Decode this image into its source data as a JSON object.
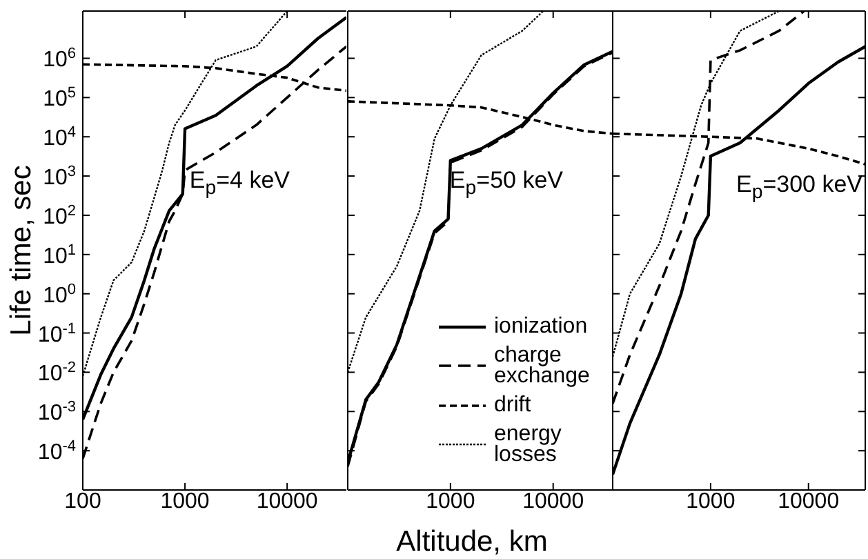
{
  "chart_data": [
    {
      "type": "line",
      "ylabel": "Life time, sec",
      "annotations": [
        "E$_{p}$=4 keV"
      ],
      "log": "xy",
      "xlim": [
        100,
        38000
      ],
      "ylim": [
        1e-05,
        16000000.0
      ],
      "xticks": [
        100,
        1000,
        10000
      ],
      "yticks": [
        {
          "value": 0.0001,
          "label": "10$^{-4}$"
        },
        {
          "value": 0.001,
          "label": "10$^{-3}$"
        },
        {
          "value": 0.01,
          "label": "10$^{-2}$"
        },
        {
          "value": 0.1,
          "label": "10$^{-1}$"
        },
        {
          "value": 1,
          "label": "10$^{0}$"
        },
        {
          "value": 10,
          "label": "10$^{1}$"
        },
        {
          "value": 100,
          "label": "10$^{2}$"
        },
        {
          "value": 1000,
          "label": "10$^{3}$"
        },
        {
          "value": 10000.0,
          "label": "10$^{4}$"
        },
        {
          "value": 100000.0,
          "label": "10$^{5}$"
        },
        {
          "value": 1000000.0,
          "label": "10$^{6}$"
        }
      ],
      "series": [
        {
          "color": "#000000",
          "line_style": "solid",
          "x": [
            100,
            150,
            200,
            300,
            400,
            500,
            700,
            950,
            1000,
            2000,
            5000,
            10000,
            20000,
            38000
          ],
          "values": [
            0.00063,
            0.0087,
            0.04,
            0.25,
            2.2,
            14,
            130,
            350,
            16000.0,
            35000.0,
            200000.0,
            630000.0,
            3200000.0,
            11000000.0
          ]
        },
        {
          "color": "#000000",
          "line_style": "dashed",
          "x": [
            100,
            150,
            200,
            300,
            400,
            500,
            700,
            800,
            950,
            1000,
            2000,
            5000,
            10000,
            20000,
            38000
          ],
          "values": [
            6.3e-05,
            0.0016,
            0.01,
            0.063,
            0.56,
            3.5,
            70,
            130,
            350,
            1400,
            4000,
            20000.0,
            100000.0,
            500000.0,
            2000000.0
          ]
        },
        {
          "color": "#000000",
          "line_style": "dashed",
          "x": [
            100,
            1000,
            2000,
            5000,
            10000,
            20000,
            38000
          ],
          "values": [
            700000.0,
            630000.0,
            560000.0,
            400000.0,
            320000.0,
            180000.0,
            150000.0
          ]
        },
        {
          "color": "#000000",
          "line_style": "dotted",
          "x": [
            100,
            150,
            200,
            300,
            400,
            500,
            600,
            700,
            800,
            1000,
            2000,
            5000,
            10000
          ],
          "values": [
            0.008,
            0.25,
            2.2,
            6.3,
            40,
            280,
            1400,
            7000,
            20000.0,
            47000.0,
            900000.0,
            2000000.0,
            16000000.0
          ]
        }
      ]
    },
    {
      "type": "line",
      "xlabel": "Altitude, km",
      "annotations": [
        "E$_{p}$=50 keV"
      ],
      "log": "xy",
      "tick_labels": "x",
      "legend": "bottom right",
      "xlim": [
        100,
        38000
      ],
      "ylim": [
        1e-05,
        16000000.0
      ],
      "xticks": [
        1000,
        10000
      ],
      "yticks": [
        {
          "value": 0.0001,
          "label": null
        },
        {
          "value": 0.001,
          "label": null
        },
        {
          "value": 0.01,
          "label": null
        },
        {
          "value": 0.1,
          "label": null
        },
        {
          "value": 1,
          "label": null
        },
        {
          "value": 10,
          "label": null
        },
        {
          "value": 100,
          "label": null
        },
        {
          "value": 1000,
          "label": null
        },
        {
          "value": 10000.0,
          "label": null
        },
        {
          "value": 100000.0,
          "label": null
        },
        {
          "value": 1000000.0,
          "label": null
        }
      ],
      "series": [
        {
          "name": "ionization",
          "color": "#000000",
          "line_style": "solid",
          "x": [
            100,
            150,
            200,
            300,
            500,
            700,
            950,
            1000,
            2000,
            5000,
            10000,
            20000,
            38000
          ],
          "values": [
            5e-05,
            0.002,
            0.0056,
            0.05,
            2.8,
            40,
            80,
            2500,
            5000,
            20000.0,
            130000.0,
            680000.0,
            1500000.0
          ]
        },
        {
          "name": "charge exchange",
          "color": "#000000",
          "line_style": "dashed",
          "x": [
            100,
            150,
            200,
            300,
            500,
            700,
            950,
            1000,
            2000,
            5000,
            10000,
            20000,
            38000
          ],
          "values": [
            4e-05,
            0.0018,
            0.005,
            0.045,
            2.5,
            35,
            70,
            2200,
            4500,
            18000.0,
            120000.0,
            630000.0,
            1400000.0
          ]
        },
        {
          "name": "drift",
          "color": "#000000",
          "line_style": "dashed",
          "x": [
            100,
            1000,
            2000,
            5000,
            10000,
            20000,
            38000
          ],
          "values": [
            80000.0,
            63000.0,
            56000.0,
            32000.0,
            20000.0,
            14000.0,
            12000.0
          ]
        },
        {
          "name": "energy losses",
          "color": "#000000",
          "line_style": "dotted",
          "x": [
            100,
            150,
            300,
            500,
            700,
            1000,
            2000,
            5000,
            8000
          ],
          "values": [
            0.01,
            0.25,
            5,
            130,
            9000,
            63000.0,
            1200000.0,
            5000000.0,
            16000000.0
          ]
        }
      ]
    },
    {
      "type": "line",
      "annotations": [
        "E$_{p}$=300 keV"
      ],
      "log": "xy",
      "tick_labels": "x",
      "xlim": [
        100,
        38000
      ],
      "ylim": [
        1e-05,
        16000000.0
      ],
      "xticks": [
        1000,
        10000
      ],
      "yticks": [
        {
          "value": 0.0001,
          "label": null
        },
        {
          "value": 0.001,
          "label": null
        },
        {
          "value": 0.01,
          "label": null
        },
        {
          "value": 0.1,
          "label": null
        },
        {
          "value": 1,
          "label": null
        },
        {
          "value": 10,
          "label": null
        },
        {
          "value": 100,
          "label": null
        },
        {
          "value": 1000,
          "label": null
        },
        {
          "value": 10000.0,
          "label": null
        },
        {
          "value": 100000.0,
          "label": null
        },
        {
          "value": 1000000.0,
          "label": null
        }
      ],
      "series": [
        {
          "color": "#000000",
          "line_style": "solid",
          "x": [
            100,
            150,
            300,
            500,
            700,
            950,
            1000,
            2000,
            5000,
            10000,
            20000,
            38000
          ],
          "values": [
            2.5e-05,
            0.0005,
            0.028,
            1,
            25,
            100,
            3200,
            7000,
            47000.0,
            230000.0,
            800000.0,
            2000000.0
          ]
        },
        {
          "color": "#000000",
          "line_style": "dashed",
          "x": [
            100,
            150,
            300,
            500,
            700,
            950,
            1000,
            2000,
            5000,
            9000
          ],
          "values": [
            0.0016,
            0.028,
            1.6,
            40,
            630,
            7000,
            900000.0,
            1600000.0,
            5000000.0,
            16000000.0
          ]
        },
        {
          "color": "#000000",
          "line_style": "dashed",
          "x": [
            100,
            1000,
            3000,
            10000,
            20000,
            38000
          ],
          "values": [
            12000.0,
            10000.0,
            9000,
            5000,
            3200,
            2000
          ]
        },
        {
          "color": "#000000",
          "line_style": "dotted",
          "x": [
            100,
            150,
            300,
            500,
            800,
            1000,
            2000,
            5000
          ],
          "values": [
            0.025,
            1,
            19,
            1000,
            63000.0,
            230000.0,
            5000000.0,
            16000000.0
          ]
        }
      ]
    }
  ]
}
